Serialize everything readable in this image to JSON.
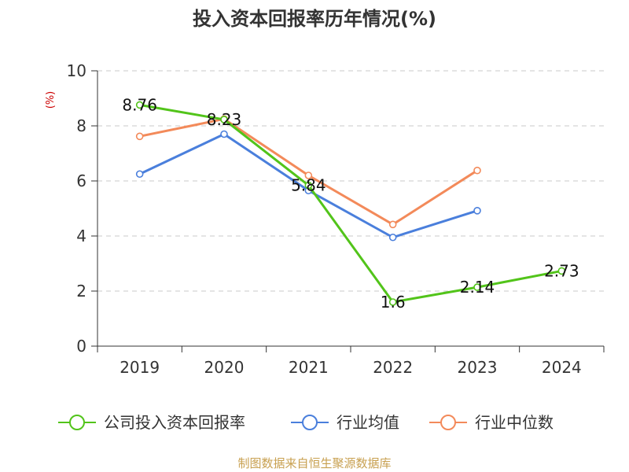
{
  "chart_data": {
    "type": "line",
    "title": "投入资本回报率历年情况(%)",
    "ylabel": "(%)",
    "xlabel": "",
    "categories": [
      "2019",
      "2020",
      "2021",
      "2022",
      "2023",
      "2024"
    ],
    "ylim": [
      0,
      10
    ],
    "yticks": [
      0,
      2,
      4,
      6,
      8,
      10
    ],
    "grid": true,
    "legend_position": "bottom",
    "series": [
      {
        "name": "公司投入资本回报率",
        "color": "#52c41a",
        "values": [
          8.76,
          8.23,
          5.84,
          1.6,
          2.14,
          2.73
        ],
        "labels": [
          "8.76",
          "8.23",
          "5.84",
          "1.6",
          "2.14",
          "2.73"
        ]
      },
      {
        "name": "行业均值",
        "color": "#4a7fdc",
        "values": [
          6.25,
          7.7,
          5.65,
          3.95,
          4.92,
          null
        ]
      },
      {
        "name": "行业中位数",
        "color": "#f38a5a",
        "values": [
          7.62,
          8.25,
          6.2,
          4.42,
          6.38,
          null
        ]
      }
    ]
  },
  "source": "制图数据来自恒生聚源数据库"
}
